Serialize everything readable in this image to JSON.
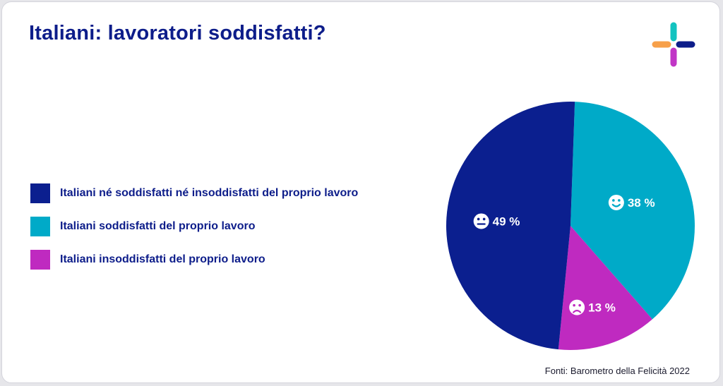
{
  "title": "Italiani: lavoratori soddisfatti?",
  "source": "Fonti: Barometro della Felicità 2022",
  "colors": {
    "title": "#0d1d8a",
    "neutral": "#0b1f8f",
    "satisfied": "#00aac8",
    "unsatisfied": "#bf2ac0",
    "logo_teal": "#13c3c0",
    "logo_orange": "#f7a04a",
    "logo_navy": "#0d1d8a",
    "logo_magenta": "#c136c6"
  },
  "logo": {
    "name": "plus-logo"
  },
  "legend": [
    {
      "label": "Italiani né soddisfatti né insoddisfatti del proprio lavoro",
      "color": "#0b1f8f"
    },
    {
      "label": "Italiani soddisfatti del proprio lavoro",
      "color": "#00aac8"
    },
    {
      "label": "Italiani insoddisfatti del proprio lavoro",
      "color": "#bf2ac0"
    }
  ],
  "chart_data": {
    "type": "pie",
    "title": "Italiani: lavoratori soddisfatti?",
    "slices": [
      {
        "label": "Italiani soddisfatti del proprio lavoro",
        "value": 38,
        "display": "38 %",
        "color": "#00aac8",
        "icon": "smile-face-icon"
      },
      {
        "label": "Italiani insoddisfatti del proprio lavoro",
        "value": 13,
        "display": "13 %",
        "color": "#bf2ac0",
        "icon": "frown-face-icon"
      },
      {
        "label": "Italiani né soddisfatti né insoddisfatti del proprio lavoro",
        "value": 49,
        "display": "49 %",
        "color": "#0b1f8f",
        "icon": "neutral-face-icon"
      }
    ],
    "unit": "%",
    "legend_position": "left"
  }
}
